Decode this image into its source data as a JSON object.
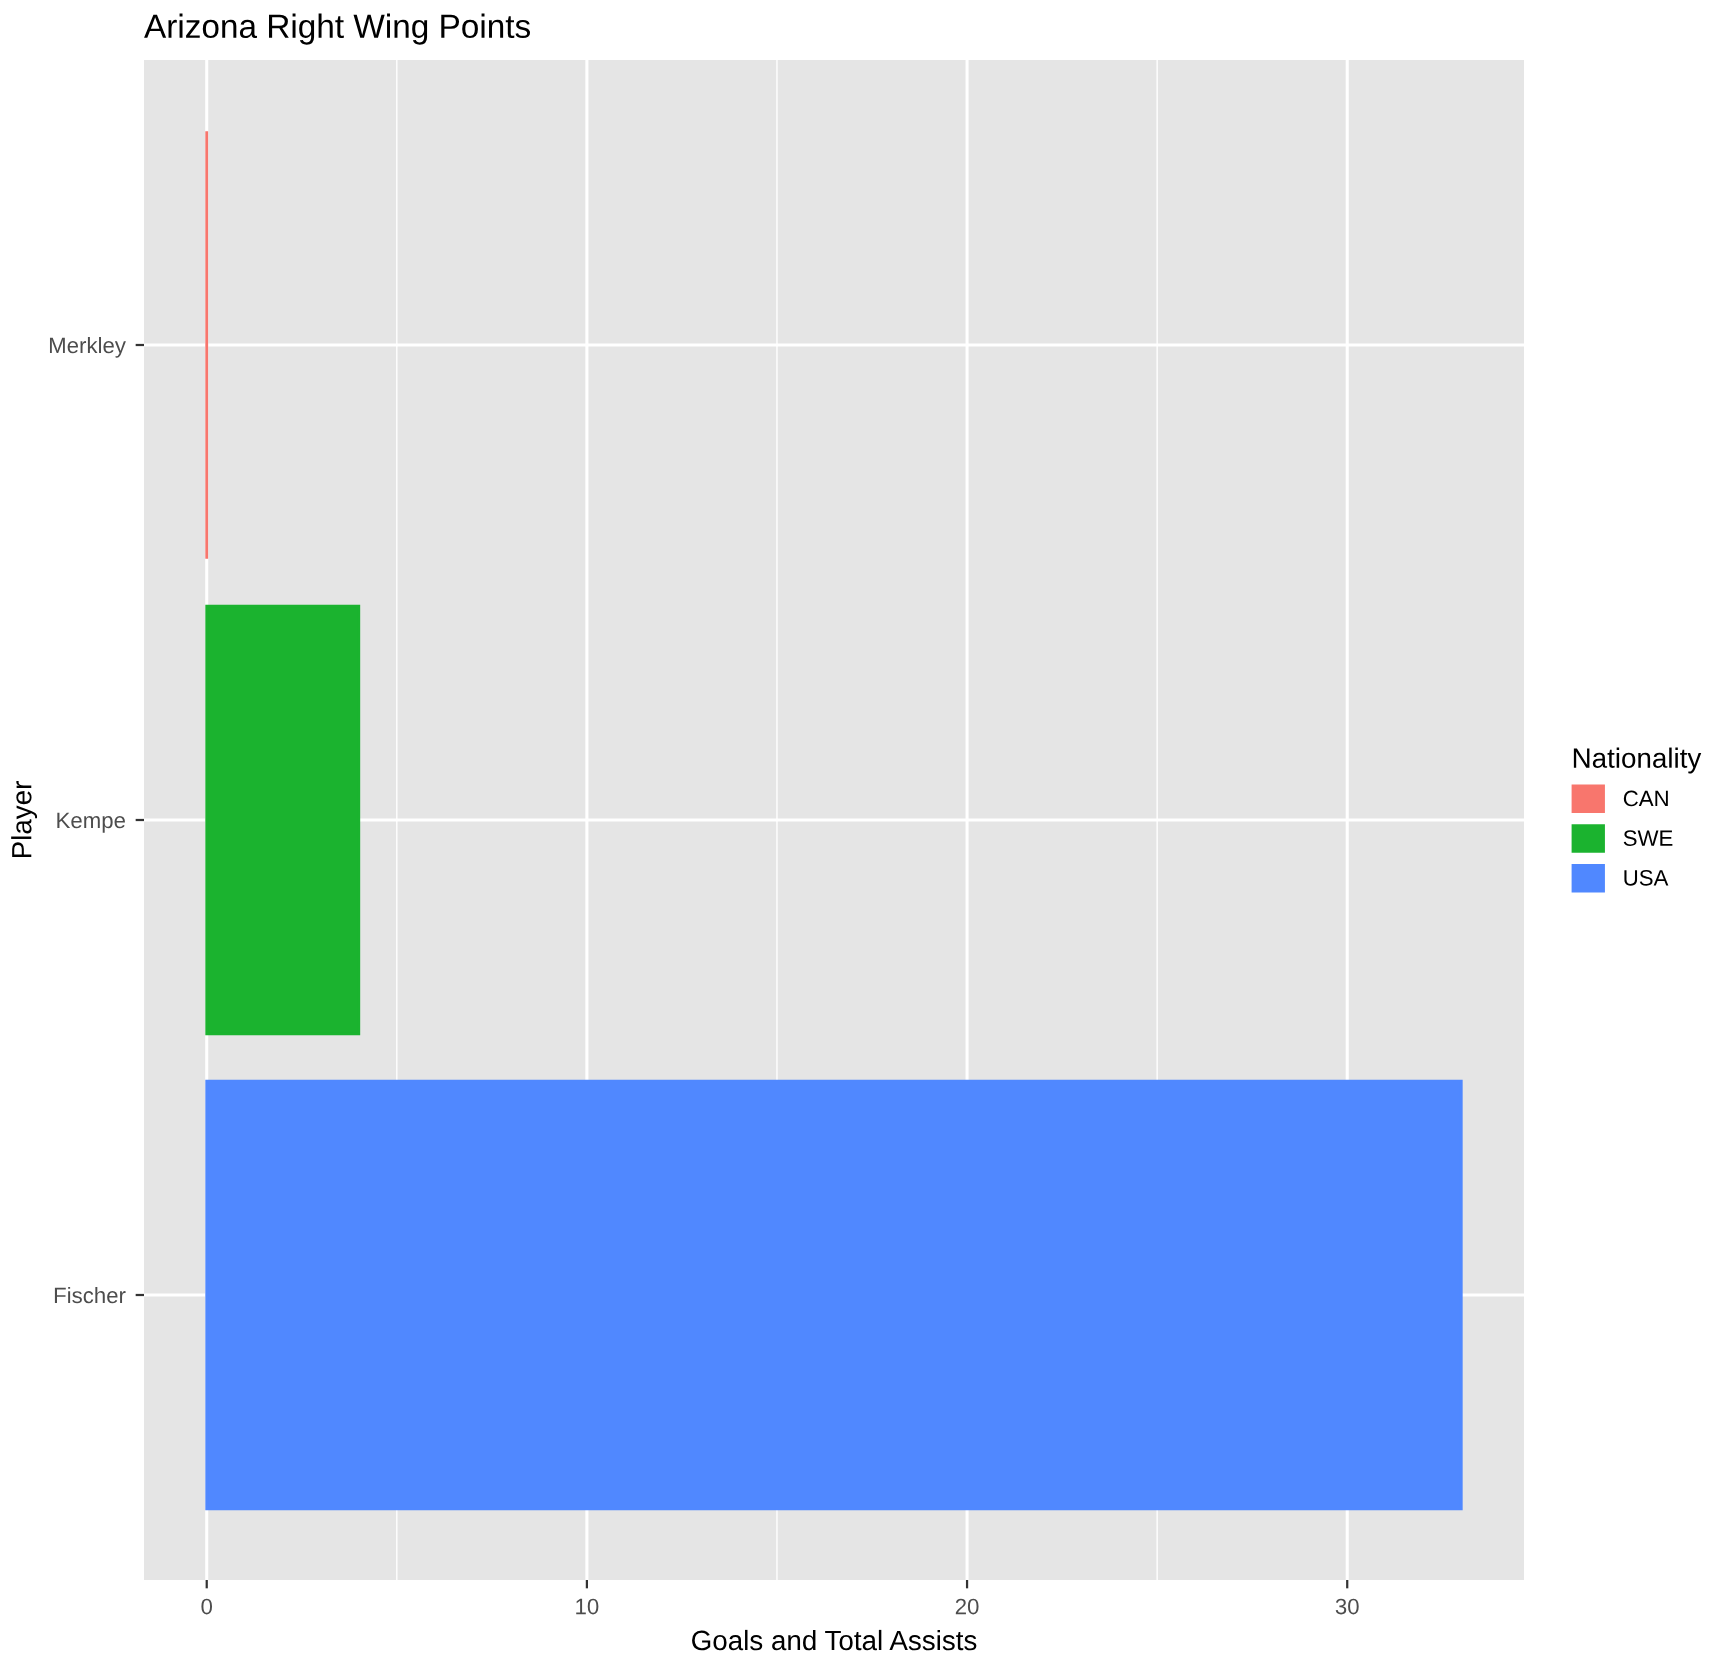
{
  "chart_data": {
    "type": "bar",
    "orientation": "horizontal",
    "title": "Arizona Right Wing Points",
    "xlabel": "Goals and Total Assists",
    "ylabel": "Player",
    "legend_title": "Nationality",
    "categories": [
      "Merkley",
      "Kempe",
      "Fischer"
    ],
    "series": [
      {
        "name": "CAN",
        "color": "#f8766d",
        "values": [
          0,
          null,
          null
        ]
      },
      {
        "name": "SWE",
        "color": "#1bb32f",
        "values": [
          null,
          4,
          null
        ]
      },
      {
        "name": "USA",
        "color": "#5088ff",
        "values": [
          null,
          null,
          33
        ]
      }
    ],
    "xlim": [
      -1.65,
      34.65
    ],
    "xticks": [
      0,
      10,
      20,
      30
    ],
    "grid": true,
    "legend": "right"
  }
}
